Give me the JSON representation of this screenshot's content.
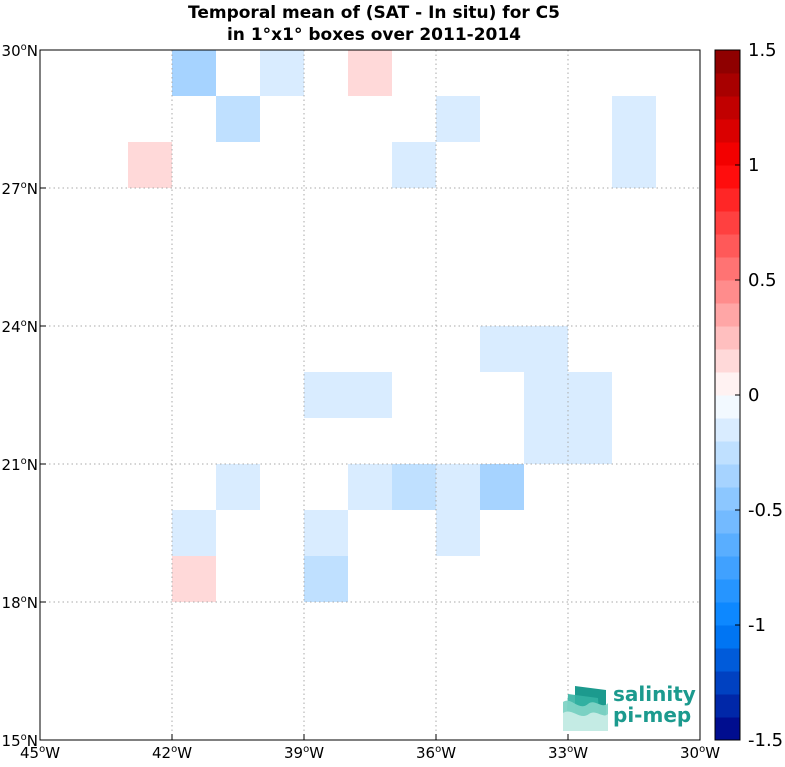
{
  "chart_data": {
    "type": "heatmap",
    "title": "Temporal mean of (SAT - In situ) for C5",
    "subtitle": "in 1°x1° boxes over 2011-2014",
    "xlim": [
      -45,
      -30
    ],
    "ylim": [
      15,
      30
    ],
    "grid": true,
    "x_ticks": [
      -45,
      -42,
      -39,
      -36,
      -33,
      -30
    ],
    "x_tick_labels": [
      {
        "deg": "45",
        "hemi": "W"
      },
      {
        "deg": "42",
        "hemi": "W"
      },
      {
        "deg": "39",
        "hemi": "W"
      },
      {
        "deg": "36",
        "hemi": "W"
      },
      {
        "deg": "33",
        "hemi": "W"
      },
      {
        "deg": "30",
        "hemi": "W"
      }
    ],
    "y_ticks": [
      15,
      18,
      21,
      24,
      27,
      30
    ],
    "y_tick_labels": [
      {
        "deg": "15",
        "hemi": "N"
      },
      {
        "deg": "18",
        "hemi": "N"
      },
      {
        "deg": "21",
        "hemi": "N"
      },
      {
        "deg": "24",
        "hemi": "N"
      },
      {
        "deg": "27",
        "hemi": "N"
      },
      {
        "deg": "30",
        "hemi": "N"
      }
    ],
    "cells": [
      {
        "lon": -42,
        "lat": 29,
        "value": -0.4
      },
      {
        "lon": -40,
        "lat": 29,
        "value": -0.15
      },
      {
        "lon": -38,
        "lat": 29,
        "value": 0.15
      },
      {
        "lon": -41,
        "lat": 28,
        "value": -0.25
      },
      {
        "lon": -36,
        "lat": 28,
        "value": -0.15
      },
      {
        "lon": -32,
        "lat": 28,
        "value": -0.15
      },
      {
        "lon": -43,
        "lat": 27,
        "value": 0.15
      },
      {
        "lon": -37,
        "lat": 27,
        "value": -0.15
      },
      {
        "lon": -32,
        "lat": 27,
        "value": -0.15
      },
      {
        "lon": -35,
        "lat": 23,
        "value": -0.15
      },
      {
        "lon": -34,
        "lat": 23,
        "value": -0.15
      },
      {
        "lon": -39,
        "lat": 22,
        "value": -0.15
      },
      {
        "lon": -38,
        "lat": 22,
        "value": -0.15
      },
      {
        "lon": -34,
        "lat": 22,
        "value": -0.15
      },
      {
        "lon": -33,
        "lat": 22,
        "value": -0.15
      },
      {
        "lon": -34,
        "lat": 21,
        "value": -0.15
      },
      {
        "lon": -33,
        "lat": 21,
        "value": -0.15
      },
      {
        "lon": -41,
        "lat": 20,
        "value": -0.15
      },
      {
        "lon": -38,
        "lat": 20,
        "value": -0.15
      },
      {
        "lon": -37,
        "lat": 20,
        "value": -0.25
      },
      {
        "lon": -36,
        "lat": 20,
        "value": -0.15
      },
      {
        "lon": -35,
        "lat": 20,
        "value": -0.4
      },
      {
        "lon": -42,
        "lat": 19,
        "value": -0.15
      },
      {
        "lon": -39,
        "lat": 19,
        "value": -0.15
      },
      {
        "lon": -36,
        "lat": 19,
        "value": -0.15
      },
      {
        "lon": -42,
        "lat": 18,
        "value": 0.15
      },
      {
        "lon": -39,
        "lat": 18,
        "value": -0.25
      }
    ],
    "colorbar": {
      "vmin": -1.5,
      "vmax": 1.5,
      "ticks": [
        1.5,
        1,
        0.5,
        0,
        -0.5,
        -1,
        -1.5
      ],
      "tick_labels": [
        "1.5",
        "1",
        "0.5",
        "0",
        "-0.5",
        "-1",
        "-1.5"
      ]
    }
  },
  "logo": {
    "line1": "salinity",
    "line2": "pi-mep"
  }
}
